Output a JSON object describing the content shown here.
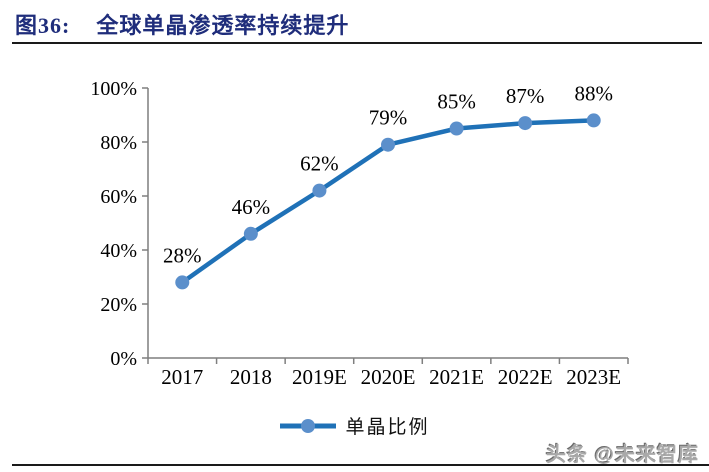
{
  "header": {
    "figure_label": "图36:",
    "title": "全球单晶渗透率持续提升"
  },
  "chart_data": {
    "type": "line",
    "title": "全球单晶渗透率持续提升",
    "categories": [
      "2017",
      "2018",
      "2019E",
      "2020E",
      "2021E",
      "2022E",
      "2023E"
    ],
    "series": [
      {
        "name": "单晶比例",
        "values": [
          28,
          46,
          62,
          79,
          85,
          87,
          88
        ]
      }
    ],
    "data_labels": [
      "28%",
      "46%",
      "62%",
      "79%",
      "85%",
      "87%",
      "88%"
    ],
    "xlabel": "",
    "ylabel": "",
    "ylim": [
      0,
      100
    ],
    "ytick_step": 20,
    "ytick_labels": [
      "0%",
      "20%",
      "40%",
      "60%",
      "80%",
      "100%"
    ],
    "grid": false,
    "legend_position": "bottom",
    "line_color": "#1F71B7",
    "marker_color": "#5B8FCB",
    "axis_color": "#7F7F7F"
  },
  "legend": {
    "label": "单晶比例"
  },
  "watermark": {
    "text": "头条 @未来智库"
  },
  "colors": {
    "title_text": "#1F2D7B",
    "rule": "#1A1A1A",
    "data_label_text": "#000000"
  }
}
